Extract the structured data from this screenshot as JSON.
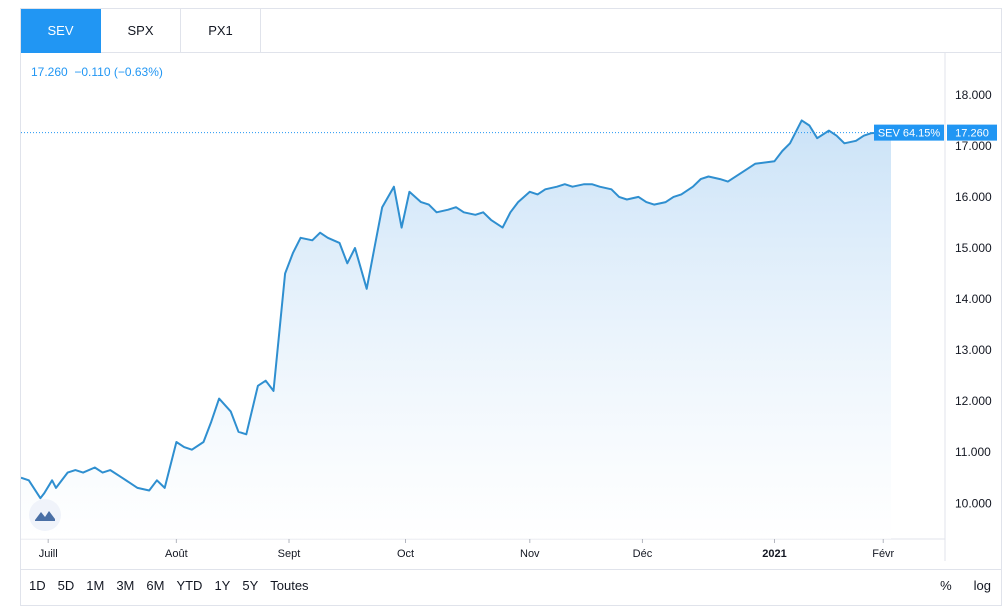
{
  "tabs": [
    {
      "label": "SEV",
      "active": true
    },
    {
      "label": "SPX",
      "active": false
    },
    {
      "label": "PX1",
      "active": false
    }
  ],
  "quote": {
    "price": "17.260",
    "change": "−0.110",
    "change_pct": "(−0.63%)"
  },
  "badges": {
    "series_label": "SEV 64.15%",
    "price_label": "17.260"
  },
  "ranges": [
    "1D",
    "5D",
    "1M",
    "3M",
    "6M",
    "YTD",
    "1Y",
    "5Y",
    "Toutes"
  ],
  "scale_buttons": {
    "percent": "%",
    "log": "log"
  },
  "colors": {
    "accent": "#2196f3",
    "line": "#2f8fd0",
    "fill_top": "#c8e1f7"
  },
  "chart_data": {
    "type": "area",
    "title": "",
    "xlabel": "",
    "ylabel": "",
    "ylim": [
      9.3,
      18.8
    ],
    "yticks": [
      "18.000",
      "17.000",
      "16.000",
      "15.000",
      "14.000",
      "13.000",
      "12.000",
      "11.000",
      "10.000"
    ],
    "xticks": [
      {
        "label": "Juill",
        "bold": false,
        "at": "2020-07-01"
      },
      {
        "label": "Août",
        "bold": false,
        "at": "2020-08-03"
      },
      {
        "label": "Sept",
        "bold": false,
        "at": "2020-09-01"
      },
      {
        "label": "Oct",
        "bold": false,
        "at": "2020-10-01"
      },
      {
        "label": "Nov",
        "bold": false,
        "at": "2020-11-02"
      },
      {
        "label": "Déc",
        "bold": false,
        "at": "2020-12-01"
      },
      {
        "label": "2021",
        "bold": true,
        "at": "2021-01-04"
      },
      {
        "label": "Févr",
        "bold": false,
        "at": "2021-02-01"
      }
    ],
    "series": [
      {
        "name": "SEV",
        "x": [
          "2020-06-24",
          "2020-06-26",
          "2020-06-29",
          "2020-06-30",
          "2020-07-02",
          "2020-07-03",
          "2020-07-06",
          "2020-07-08",
          "2020-07-10",
          "2020-07-13",
          "2020-07-15",
          "2020-07-17",
          "2020-07-20",
          "2020-07-22",
          "2020-07-24",
          "2020-07-27",
          "2020-07-29",
          "2020-07-31",
          "2020-08-03",
          "2020-08-05",
          "2020-08-07",
          "2020-08-10",
          "2020-08-12",
          "2020-08-14",
          "2020-08-17",
          "2020-08-19",
          "2020-08-21",
          "2020-08-24",
          "2020-08-26",
          "2020-08-28",
          "2020-08-31",
          "2020-09-02",
          "2020-09-04",
          "2020-09-07",
          "2020-09-09",
          "2020-09-11",
          "2020-09-14",
          "2020-09-16",
          "2020-09-18",
          "2020-09-21",
          "2020-09-23",
          "2020-09-25",
          "2020-09-28",
          "2020-09-30",
          "2020-10-02",
          "2020-10-05",
          "2020-10-07",
          "2020-10-09",
          "2020-10-12",
          "2020-10-14",
          "2020-10-16",
          "2020-10-19",
          "2020-10-21",
          "2020-10-23",
          "2020-10-26",
          "2020-10-28",
          "2020-10-30",
          "2020-11-02",
          "2020-11-04",
          "2020-11-06",
          "2020-11-09",
          "2020-11-11",
          "2020-11-13",
          "2020-11-16",
          "2020-11-18",
          "2020-11-20",
          "2020-11-23",
          "2020-11-25",
          "2020-11-27",
          "2020-11-30",
          "2020-12-02",
          "2020-12-04",
          "2020-12-07",
          "2020-12-09",
          "2020-12-11",
          "2020-12-14",
          "2020-12-16",
          "2020-12-18",
          "2020-12-21",
          "2020-12-23",
          "2020-12-28",
          "2020-12-30",
          "2021-01-04",
          "2021-01-06",
          "2021-01-08",
          "2021-01-11",
          "2021-01-13",
          "2021-01-15",
          "2021-01-18",
          "2021-01-20",
          "2021-01-22",
          "2021-01-25",
          "2021-01-27",
          "2021-01-29",
          "2021-02-01",
          "2021-02-03"
        ],
        "y": [
          10.5,
          10.45,
          10.1,
          10.2,
          10.45,
          10.3,
          10.6,
          10.65,
          10.6,
          10.7,
          10.6,
          10.65,
          10.5,
          10.4,
          10.3,
          10.25,
          10.45,
          10.3,
          11.2,
          11.1,
          11.05,
          11.2,
          11.6,
          12.05,
          11.8,
          11.4,
          11.35,
          12.3,
          12.4,
          12.2,
          14.5,
          14.9,
          15.2,
          15.15,
          15.3,
          15.2,
          15.1,
          14.7,
          15.0,
          14.2,
          15.0,
          15.8,
          16.2,
          15.4,
          16.1,
          15.9,
          15.85,
          15.7,
          15.75,
          15.8,
          15.7,
          15.65,
          15.7,
          15.55,
          15.4,
          15.7,
          15.9,
          16.1,
          16.05,
          16.15,
          16.2,
          16.25,
          16.2,
          16.25,
          16.25,
          16.2,
          16.15,
          16.0,
          15.95,
          16.0,
          15.9,
          15.85,
          15.9,
          16.0,
          16.05,
          16.2,
          16.35,
          16.4,
          16.35,
          16.3,
          16.55,
          16.65,
          16.7,
          16.9,
          17.05,
          17.5,
          17.4,
          17.15,
          17.3,
          17.2,
          17.05,
          17.1,
          17.2,
          17.25,
          17.26,
          17.26
        ]
      }
    ],
    "current_value": 17.26,
    "grid": false,
    "legend": "none"
  }
}
